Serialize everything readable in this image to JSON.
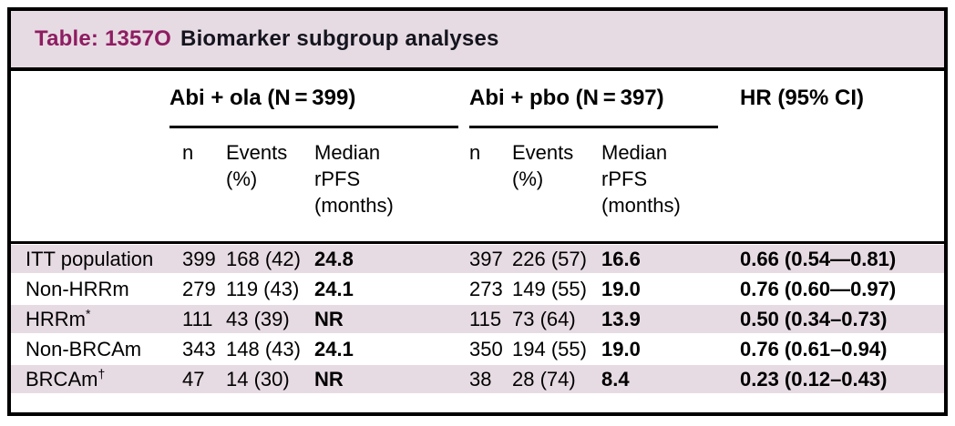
{
  "title": {
    "prefix": "Table: 1357O",
    "main": "Biomarker subgroup analyses"
  },
  "columns": {
    "group1": "Abi + ola (N = 399)",
    "group2": "Abi + pbo (N = 397)",
    "hr": "HR (95% CI)",
    "sub": {
      "n": "n",
      "events": "Events\n(%)",
      "median": "Median\nrPFS\n(months)"
    }
  },
  "rows": [
    {
      "label": "ITT population",
      "label_sup": "",
      "g1": {
        "n": "399",
        "events": "168 (42)",
        "median": "24.8"
      },
      "g2": {
        "n": "397",
        "events": "226 (57)",
        "median": "16.6"
      },
      "hr": "0.66 (0.54—0.81)"
    },
    {
      "label": "Non-HRRm",
      "label_sup": "",
      "g1": {
        "n": "279",
        "events": "119 (43)",
        "median": "24.1"
      },
      "g2": {
        "n": "273",
        "events": "149 (55)",
        "median": "19.0"
      },
      "hr": "0.76 (0.60—0.97)"
    },
    {
      "label": "HRRm",
      "label_sup": "*",
      "g1": {
        "n": "111",
        "events": "43 (39)",
        "median": "NR"
      },
      "g2": {
        "n": "115",
        "events": "73 (64)",
        "median": "13.9"
      },
      "hr": "0.50 (0.34–0.73)"
    },
    {
      "label": "Non-BRCAm",
      "label_sup": "",
      "g1": {
        "n": "343",
        "events": "148 (43)",
        "median": "24.1"
      },
      "g2": {
        "n": "350",
        "events": "194 (55)",
        "median": "19.0"
      },
      "hr": "0.76 (0.61–0.94)"
    },
    {
      "label": "BRCAm",
      "label_sup": "†",
      "g1": {
        "n": "47",
        "events": "14 (30)",
        "median": "NR"
      },
      "g2": {
        "n": "38",
        "events": "28 (74)",
        "median": "8.4"
      },
      "hr": "0.23 (0.12–0.43)"
    }
  ],
  "colors": {
    "band_pink": "#e7dbe3",
    "accent_magenta": "#8e1d62",
    "border_black": "#000000"
  }
}
